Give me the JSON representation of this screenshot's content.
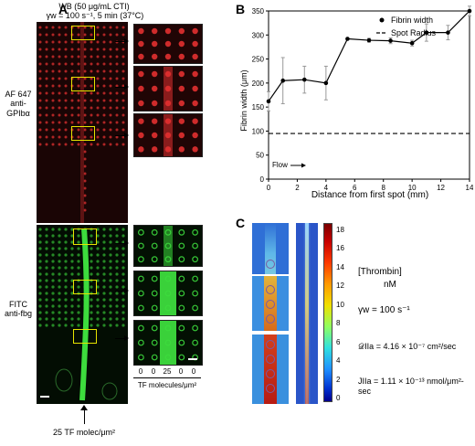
{
  "panels": {
    "A": "A",
    "B": "B",
    "C": "C"
  },
  "panelA": {
    "header_line1": "WB (50 μg/mL CTI)",
    "header_line2": "γw = 100 s⁻¹, 5 min (37°C)",
    "top_label_1": "AF 647",
    "top_label_2": "anti-GPIbα",
    "bottom_label_1": "FITC",
    "bottom_label_2": "anti-fbg",
    "tf_values": [
      "0",
      "0",
      "25",
      "0",
      "0"
    ],
    "tf_axis_label": "TF molecules/μm²",
    "bottom_caption": "25 TF molec/μm²",
    "colors": {
      "red_channel": "#e23030",
      "green_channel": "#3ddc3d",
      "roi_box": "#e6e400"
    }
  },
  "chart_data": {
    "type": "line",
    "xlabel": "Distance from first spot (mm)",
    "ylabel": "Fibrin width (μm)",
    "xlim": [
      0,
      14
    ],
    "ylim": [
      0,
      350
    ],
    "xticks": [
      0,
      2,
      4,
      6,
      8,
      10,
      12,
      14
    ],
    "yticks": [
      0,
      50,
      100,
      150,
      200,
      250,
      300,
      350
    ],
    "legend_position": "top-right",
    "series": [
      {
        "name": "Fibrin width",
        "style": "line-marker",
        "x": [
          0,
          1,
          2.5,
          4,
          5.5,
          7,
          8.5,
          10,
          11,
          12.5,
          14
        ],
        "y": [
          162,
          205,
          207,
          200,
          292,
          289,
          288,
          283,
          305,
          305,
          350
        ],
        "err": [
          20,
          48,
          28,
          35,
          0,
          4,
          6,
          6,
          18,
          15,
          10
        ]
      },
      {
        "name": "Spot Radius",
        "style": "dashed",
        "x": [
          0,
          14
        ],
        "y": [
          95,
          95
        ]
      }
    ],
    "annotation": "Flow"
  },
  "panelC": {
    "colorbar_ticks": [
      "18",
      "16",
      "14",
      "12",
      "10",
      "8",
      "6",
      "4",
      "2",
      "0"
    ],
    "title_line1": "[Thrombin]",
    "title_line2": "nM",
    "shear": "γw = 100 s⁻¹",
    "diffusivity": "𝒟IIa = 4.16 × 10⁻⁷ cm²/sec",
    "flux": "JIIa = 1.11 × 10⁻¹³ nmol/μm²-sec"
  }
}
